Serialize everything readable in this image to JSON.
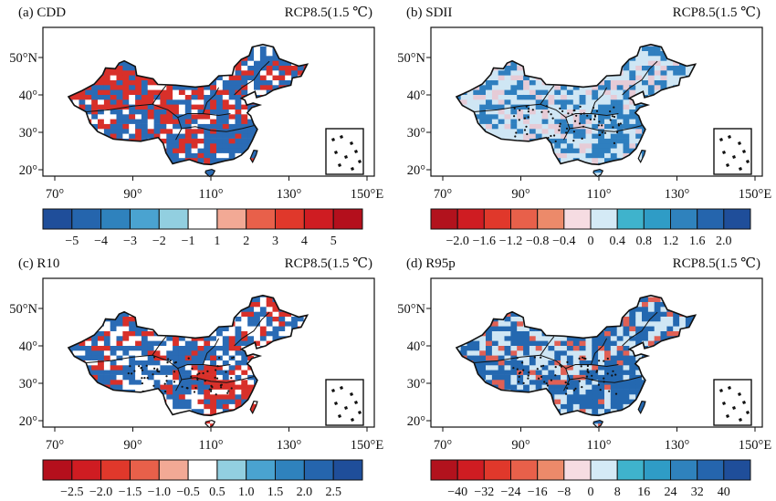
{
  "scenario_label": "RCP8.5(1.5 ℃)",
  "axes": {
    "lon_ticks": [
      "70°",
      "90°",
      "110°",
      "130°",
      "150°E"
    ],
    "lat_ticks": [
      "50°N",
      "40°",
      "30°",
      "20°"
    ]
  },
  "panels": [
    {
      "id": "a",
      "title": "(a) CDD",
      "colorbar": {
        "colors": [
          "#1f4e9a",
          "#2565ad",
          "#2f82bd",
          "#4aa3d0",
          "#92cfe0",
          "#ffffff",
          "#f2a995",
          "#e8604a",
          "#e0382b",
          "#cf1c22",
          "#b40f1c"
        ],
        "labels": [
          "−5",
          "−4",
          "−3",
          "−2",
          "−1",
          "1",
          "2",
          "3",
          "4",
          "5"
        ]
      },
      "field": {
        "low": "#2a6bb5",
        "mid": "#ffffff",
        "high": "#d8302a",
        "mix": [
          0.45,
          0.25,
          0.3
        ]
      }
    },
    {
      "id": "b",
      "title": "(b) SDII",
      "colorbar": {
        "colors": [
          "#b2121d",
          "#cf1c22",
          "#e0382b",
          "#e8604a",
          "#ec8a6a",
          "#f6dce2",
          "#d4eaf6",
          "#3fb3cc",
          "#2f9cc6",
          "#2f82bd",
          "#2565ad",
          "#1f4e9a"
        ],
        "labels": [
          "−2.0",
          "−1.6",
          "−1.2",
          "−0.8",
          "−0.4",
          "0",
          "0.4",
          "0.8",
          "1.2",
          "1.6",
          "2.0"
        ]
      },
      "field": {
        "low": "#e6cbd6",
        "mid": "#cfe6f4",
        "high": "#2f7fbf",
        "mix": [
          0.2,
          0.45,
          0.35
        ]
      }
    },
    {
      "id": "c",
      "title": "(c) R10",
      "colorbar": {
        "colors": [
          "#b40f1c",
          "#cf1c22",
          "#e0382b",
          "#e8604a",
          "#f2a995",
          "#ffffff",
          "#92cfe0",
          "#4aa3d0",
          "#2f82bd",
          "#2565ad",
          "#1f4e9a"
        ],
        "labels": [
          "−2.5",
          "−2.0",
          "−1.5",
          "−1.0",
          "−0.5",
          "0.5",
          "1.0",
          "1.5",
          "2.0",
          "2.5"
        ]
      },
      "field": {
        "low": "#d8302a",
        "mid": "#ffffff",
        "high": "#2a6bb5",
        "mix": [
          0.22,
          0.33,
          0.45
        ]
      }
    },
    {
      "id": "d",
      "title": "(d) R95p",
      "colorbar": {
        "colors": [
          "#b2121d",
          "#cf1c22",
          "#e0382b",
          "#e8604a",
          "#ec8a6a",
          "#f6dce2",
          "#d4eaf6",
          "#3fb3cc",
          "#2f9cc6",
          "#2f82bd",
          "#2565ad",
          "#1f4e9a"
        ],
        "labels": [
          "−40",
          "−32",
          "−24",
          "−16",
          "−8",
          "0",
          "8",
          "16",
          "24",
          "32",
          "40"
        ]
      },
      "field": {
        "low": "#e06055",
        "mid": "#cfe6f4",
        "high": "#2468b0",
        "mix": [
          0.15,
          0.35,
          0.5
        ]
      }
    }
  ]
}
